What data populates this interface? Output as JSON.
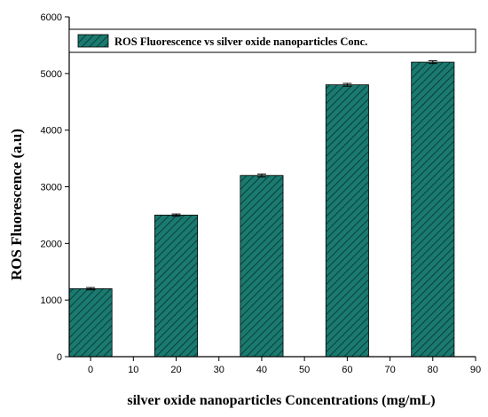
{
  "chart_data": {
    "type": "bar",
    "x": [
      0,
      20,
      40,
      60,
      80
    ],
    "values": [
      1200,
      2500,
      3200,
      4800,
      5200
    ],
    "errors": [
      20,
      20,
      25,
      25,
      25
    ],
    "xlabel": "silver oxide nanoparticles Concentrations (mg/mL)",
    "ylabel": "ROS Fluorescence (a.u)",
    "xlim": [
      -5,
      90
    ],
    "ylim": [
      0,
      6000
    ],
    "xticks": [
      0,
      10,
      20,
      30,
      40,
      50,
      60,
      70,
      80,
      90
    ],
    "yticks": [
      0,
      1000,
      2000,
      3000,
      4000,
      5000,
      6000
    ],
    "series": [
      {
        "name": "ROS Fluorescence  vs silver oxide nanoparticles Conc.",
        "values": [
          1200,
          2500,
          3200,
          4800,
          5200
        ]
      }
    ],
    "legend_position": "top",
    "bar_width": 10,
    "bar_color": "#1a7a70",
    "bar_pattern": "diagonal-hatch",
    "grid": false
  }
}
